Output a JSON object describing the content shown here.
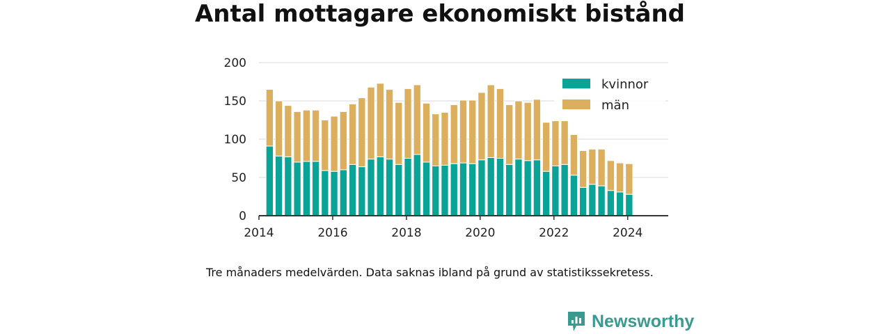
{
  "header": {
    "title": "Antal mottagare ekonomiskt bistånd"
  },
  "footer": {
    "note": "Tre månaders medelvärden. Data saknas ibland på grund av statistikssekretess.",
    "brand": "Newsworthy"
  },
  "colors": {
    "kvinnor": "#0aa497",
    "man": "#dbaf5d",
    "axis": "#333333",
    "grid": "#d9d9d9"
  },
  "chart_data": {
    "type": "bar",
    "stacked": true,
    "title": "Antal mottagare ekonomiskt bistånd",
    "xlabel": "",
    "ylabel": "",
    "xlim": [
      2014,
      2025.1
    ],
    "ylim": [
      0,
      200
    ],
    "x_ticks": [
      2014,
      2016,
      2018,
      2020,
      2022,
      2024
    ],
    "y_ticks": [
      0,
      50,
      100,
      150,
      200
    ],
    "grid": true,
    "legend_position": "top-right",
    "x": [
      2014.29,
      2014.54,
      2014.79,
      2015.04,
      2015.29,
      2015.54,
      2015.79,
      2016.04,
      2016.29,
      2016.54,
      2016.79,
      2017.04,
      2017.29,
      2017.54,
      2017.79,
      2018.04,
      2018.29,
      2018.54,
      2018.79,
      2019.04,
      2019.29,
      2019.54,
      2019.79,
      2020.04,
      2020.29,
      2020.54,
      2020.79,
      2021.04,
      2021.29,
      2021.54,
      2021.79,
      2022.04,
      2022.29,
      2022.54,
      2022.79,
      2023.04,
      2023.29,
      2023.54,
      2023.79,
      2024.04
    ],
    "series": [
      {
        "name": "kvinnor",
        "values": [
          91,
          78,
          77,
          70,
          71,
          71,
          59,
          58,
          60,
          67,
          64,
          74,
          77,
          74,
          67,
          75,
          80,
          70,
          65,
          66,
          68,
          69,
          68,
          73,
          76,
          75,
          67,
          74,
          72,
          73,
          58,
          65,
          67,
          53,
          37,
          41,
          39,
          33,
          31,
          28
        ]
      },
      {
        "name": "män",
        "values": [
          74,
          72,
          67,
          66,
          67,
          67,
          66,
          72,
          76,
          79,
          90,
          94,
          96,
          91,
          81,
          91,
          91,
          77,
          68,
          69,
          77,
          82,
          83,
          88,
          95,
          91,
          78,
          76,
          76,
          79,
          64,
          59,
          57,
          53,
          48,
          46,
          48,
          39,
          38,
          40
        ]
      }
    ]
  }
}
